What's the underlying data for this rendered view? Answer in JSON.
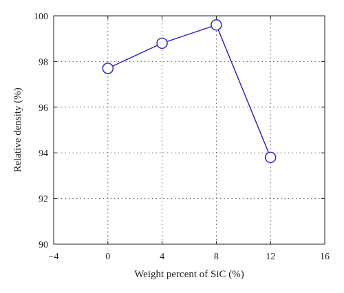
{
  "chart_data": {
    "type": "line",
    "title": "",
    "xlabel": "Weight percent of SiC (%)",
    "ylabel": "Relative density (%)",
    "xlim": [
      -4,
      16
    ],
    "ylim": [
      90,
      100
    ],
    "xticks": [
      -4,
      0,
      4,
      8,
      12,
      16
    ],
    "xtick_labels": [
      "−4",
      "0",
      "4",
      "8",
      "12",
      "16"
    ],
    "yticks": [
      90,
      92,
      94,
      96,
      98,
      100
    ],
    "ytick_labels": [
      "90",
      "92",
      "94",
      "96",
      "98",
      "100"
    ],
    "grid": "dotted",
    "legend": "none",
    "series": [
      {
        "x": [
          0,
          4,
          8,
          12
        ],
        "values": [
          97.7,
          98.8,
          99.6,
          93.8
        ],
        "color": "#2b2bc8",
        "marker": "open-circle"
      }
    ]
  }
}
